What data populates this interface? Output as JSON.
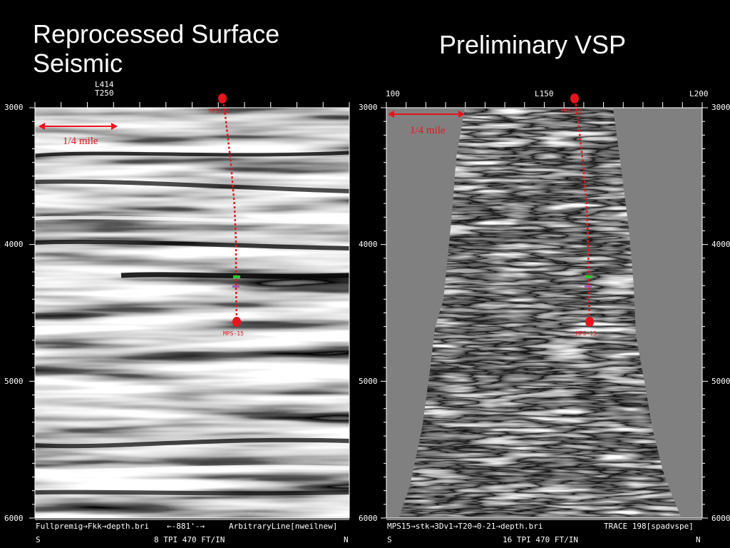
{
  "titles": {
    "left": "Reprocessed Surface Seismic",
    "right": "Preliminary VSP"
  },
  "left_panel": {
    "header_lines": [
      "L414",
      "T250"
    ],
    "depth_ticks": [
      "3000",
      "4000",
      "5000",
      "6000"
    ],
    "scale_annotation": "1/4 mile",
    "well_label": "MPS-15",
    "footer_line1_left": "Fullpremig→Fkk→depth.bri",
    "footer_line1_mid": "←-881'-→",
    "footer_line1_right": "ArbitraryLine[nweilnew]",
    "footer_line2_left": "S",
    "footer_line2_mid": "8 TPI 470 FT/IN",
    "footer_line2_right": "N"
  },
  "right_panel": {
    "header_labels": [
      "100",
      "L150",
      "L200"
    ],
    "depth_ticks": [
      "3000",
      "4000",
      "5000",
      "6000"
    ],
    "scale_annotation": "1/4 mile",
    "well_label": "MPS-15",
    "footer_line1_left": "MPS15→stk→3Dv1→T20→0-21→depth.bri",
    "footer_line1_right": "TRACE 198[spadvspe]",
    "footer_line2_left": "S",
    "footer_line2_mid": "16 TPI 470 FT/IN",
    "footer_line2_right": "N"
  },
  "colors": {
    "background": "#000000",
    "well_path": "#e8141c",
    "marker_green": "#22cc22",
    "marker_purple": "#a05ab4",
    "vsp_background": "#808080"
  }
}
